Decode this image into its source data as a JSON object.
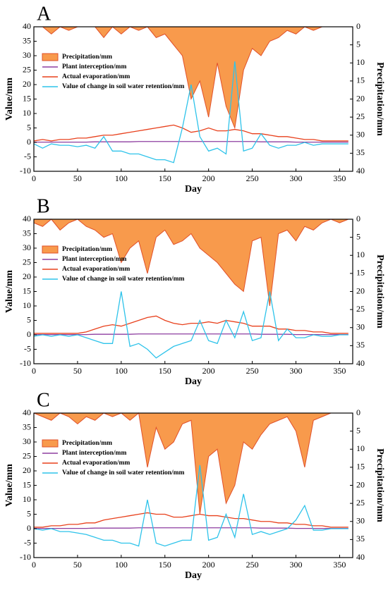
{
  "chart_data": [
    {
      "type": "line",
      "title": "A",
      "xlabel": "Day",
      "ylabel": "Value/mm",
      "y2label": "Precipitation/mm",
      "x": [
        0,
        10,
        20,
        30,
        40,
        50,
        60,
        70,
        80,
        90,
        100,
        110,
        120,
        130,
        140,
        150,
        160,
        170,
        180,
        190,
        200,
        210,
        220,
        230,
        240,
        250,
        260,
        270,
        280,
        290,
        300,
        310,
        320,
        330,
        340,
        350,
        360
      ],
      "xlim": [
        0,
        365
      ],
      "xticks": [
        0,
        50,
        100,
        150,
        200,
        250,
        300,
        350
      ],
      "ylim": [
        -10,
        40
      ],
      "yticks": [
        -10,
        -5,
        0,
        5,
        10,
        15,
        20,
        25,
        30,
        35,
        40
      ],
      "y2lim": [
        40,
        0
      ],
      "y2ticks": [
        0,
        5,
        10,
        15,
        20,
        25,
        30,
        35,
        40
      ],
      "series": [
        {
          "name": "Precipitation/mm",
          "color": "#f89a4c",
          "axis": "y2",
          "values": [
            0,
            0,
            2,
            0,
            1,
            0,
            0,
            0,
            3,
            0,
            2,
            0,
            1,
            0,
            3,
            2,
            5,
            8,
            20,
            15,
            25,
            10,
            22,
            28,
            12,
            6,
            8,
            4,
            3,
            1,
            2,
            0,
            1,
            0,
            0,
            0,
            0
          ]
        },
        {
          "name": "Plant interception/mm",
          "color": "#8e3ea0",
          "values": [
            0.1,
            0.1,
            0.1,
            0.1,
            0.1,
            0.1,
            0.1,
            0.2,
            0.2,
            0.2,
            0.2,
            0.2,
            0.3,
            0.3,
            0.3,
            0.3,
            0.3,
            0.3,
            0.3,
            0.3,
            0.3,
            0.3,
            0.3,
            0.3,
            0.3,
            0.3,
            0.2,
            0.2,
            0.2,
            0.2,
            0.1,
            0.1,
            0.1,
            0.1,
            0.1,
            0.1,
            0.1
          ]
        },
        {
          "name": "Actual evaporation/mm",
          "color": "#e8401c",
          "values": [
            0.5,
            1,
            0.5,
            1,
            1,
            1.5,
            1.5,
            2,
            2.5,
            2.5,
            3,
            3.5,
            4,
            4.5,
            5,
            5.5,
            6,
            5,
            3.5,
            4,
            5,
            4,
            4,
            4.5,
            4,
            3,
            3,
            2.5,
            2,
            2,
            1.5,
            1,
            1,
            0.5,
            0.5,
            0.5,
            0.5
          ]
        },
        {
          "name": "Value of change in soil water retention/mm",
          "color": "#2ec3ea",
          "values": [
            -0.5,
            -2,
            -0.5,
            -1,
            -1,
            -1.5,
            -1,
            -2,
            2,
            -3,
            -3,
            -4,
            -4,
            -5,
            -6,
            -6,
            -7,
            5,
            20,
            2,
            -3,
            -2,
            -4,
            28,
            -3,
            -2,
            3,
            -1,
            -2,
            -1,
            -1,
            0,
            -1,
            -0.5,
            -0.5,
            -0.5,
            -0.5
          ]
        }
      ]
    },
    {
      "type": "line",
      "title": "B",
      "xlabel": "Day",
      "ylabel": "Value/mm",
      "y2label": "Precipitation/mm",
      "x": [
        0,
        10,
        20,
        30,
        40,
        50,
        60,
        70,
        80,
        90,
        100,
        110,
        120,
        130,
        140,
        150,
        160,
        170,
        180,
        190,
        200,
        210,
        220,
        230,
        240,
        250,
        260,
        270,
        280,
        290,
        300,
        310,
        320,
        330,
        340,
        350,
        360
      ],
      "xlim": [
        0,
        365
      ],
      "xticks": [
        0,
        50,
        100,
        150,
        200,
        250,
        300,
        350
      ],
      "ylim": [
        -10,
        40
      ],
      "yticks": [
        -10,
        -5,
        0,
        5,
        10,
        15,
        20,
        25,
        30,
        35,
        40
      ],
      "y2lim": [
        40,
        0
      ],
      "y2ticks": [
        0,
        5,
        10,
        15,
        20,
        25,
        30,
        35,
        40
      ],
      "series": [
        {
          "name": "Precipitation/mm",
          "color": "#f89a4c",
          "axis": "y2",
          "values": [
            1,
            2,
            0,
            3,
            1,
            0,
            2,
            3,
            5,
            4,
            12,
            8,
            6,
            15,
            5,
            3,
            7,
            6,
            4,
            8,
            10,
            12,
            15,
            18,
            20,
            6,
            5,
            24,
            4,
            3,
            6,
            2,
            3,
            1,
            0,
            1,
            0
          ]
        },
        {
          "name": "Plant interception/mm",
          "color": "#8e3ea0",
          "values": [
            0.1,
            0.1,
            0.1,
            0.1,
            0.1,
            0.1,
            0.1,
            0.2,
            0.2,
            0.2,
            0.2,
            0.2,
            0.3,
            0.3,
            0.3,
            0.3,
            0.3,
            0.3,
            0.3,
            0.3,
            0.3,
            0.3,
            0.3,
            0.3,
            0.3,
            0.3,
            0.2,
            0.2,
            0.2,
            0.2,
            0.1,
            0.1,
            0.1,
            0.1,
            0.1,
            0.1,
            0.1
          ]
        },
        {
          "name": "Actual evaporation/mm",
          "color": "#e8401c",
          "values": [
            0.5,
            0.5,
            0.5,
            0.5,
            0.5,
            0.5,
            1,
            2,
            3,
            3.5,
            3,
            4,
            5,
            6,
            6.5,
            5,
            4,
            3.5,
            4,
            4,
            4.5,
            4,
            5,
            4.5,
            4,
            3,
            3,
            3,
            2,
            2,
            1.5,
            1.5,
            1,
            1,
            0.5,
            0.5,
            0.5
          ]
        },
        {
          "name": "Value of change in soil water retention/mm",
          "color": "#2ec3ea",
          "values": [
            -0.5,
            0,
            -0.5,
            0,
            -0.5,
            0,
            -1,
            -2,
            -3,
            -3,
            15,
            -4,
            -3,
            -5,
            -8,
            -6,
            -4,
            -3,
            -2,
            5,
            -2,
            -3,
            5,
            -1,
            8,
            -2,
            -1,
            15,
            -2,
            2,
            -1,
            -1,
            0,
            -0.5,
            -0.5,
            0,
            0
          ]
        }
      ]
    },
    {
      "type": "line",
      "title": "C",
      "xlabel": "Day",
      "ylabel": "Value/mm",
      "y2label": "Precipitation/mm",
      "x": [
        0,
        10,
        20,
        30,
        40,
        50,
        60,
        70,
        80,
        90,
        100,
        110,
        120,
        130,
        140,
        150,
        160,
        170,
        180,
        190,
        200,
        210,
        220,
        230,
        240,
        250,
        260,
        270,
        280,
        290,
        300,
        310,
        320,
        330,
        340,
        350,
        360
      ],
      "xlim": [
        0,
        365
      ],
      "xticks": [
        0,
        50,
        100,
        150,
        200,
        250,
        300,
        350
      ],
      "ylim": [
        -10,
        40
      ],
      "yticks": [
        -10,
        -5,
        0,
        5,
        10,
        15,
        20,
        25,
        30,
        35,
        40
      ],
      "y2lim": [
        40,
        0
      ],
      "y2ticks": [
        0,
        5,
        10,
        15,
        20,
        25,
        30,
        35,
        40
      ],
      "series": [
        {
          "name": "Precipitation/mm",
          "color": "#f89a4c",
          "axis": "y2",
          "values": [
            0,
            1,
            2,
            0,
            1,
            3,
            1,
            2,
            0,
            1,
            0,
            2,
            0,
            15,
            4,
            10,
            8,
            3,
            2,
            28,
            12,
            10,
            25,
            20,
            8,
            10,
            6,
            3,
            2,
            1,
            5,
            15,
            2,
            1,
            0,
            0,
            0
          ]
        },
        {
          "name": "Plant interception/mm",
          "color": "#8e3ea0",
          "values": [
            0.1,
            0.1,
            0.1,
            0.1,
            0.1,
            0.1,
            0.1,
            0.2,
            0.2,
            0.2,
            0.2,
            0.2,
            0.3,
            0.3,
            0.3,
            0.3,
            0.3,
            0.3,
            0.3,
            0.3,
            0.3,
            0.3,
            0.3,
            0.3,
            0.3,
            0.3,
            0.2,
            0.2,
            0.2,
            0.2,
            0.1,
            0.1,
            0.1,
            0.1,
            0.1,
            0.1,
            0.1
          ]
        },
        {
          "name": "Actual evaporation/mm",
          "color": "#e8401c",
          "values": [
            0.5,
            0.5,
            1,
            1,
            1.5,
            1.5,
            2,
            2,
            3,
            3.5,
            4,
            4.5,
            5,
            5.5,
            5,
            5,
            4,
            4,
            4.5,
            5,
            4.5,
            4.5,
            4,
            3.5,
            3.5,
            3,
            2.5,
            2.5,
            2,
            2,
            1.5,
            1.5,
            1,
            1,
            0.5,
            0.5,
            0.5
          ]
        },
        {
          "name": "Value of change in soil water retention/mm",
          "color": "#2ec3ea",
          "values": [
            0,
            -0.5,
            0,
            -1,
            -1,
            -1.5,
            -2,
            -3,
            -4,
            -4,
            -5,
            -5,
            -6,
            10,
            -5,
            -6,
            -5,
            -4,
            -4,
            22,
            -4,
            -3,
            5,
            -3,
            12,
            -2,
            -1,
            -2,
            -1,
            0,
            3,
            8,
            -0.5,
            -0.5,
            0,
            0,
            0
          ]
        }
      ]
    }
  ]
}
